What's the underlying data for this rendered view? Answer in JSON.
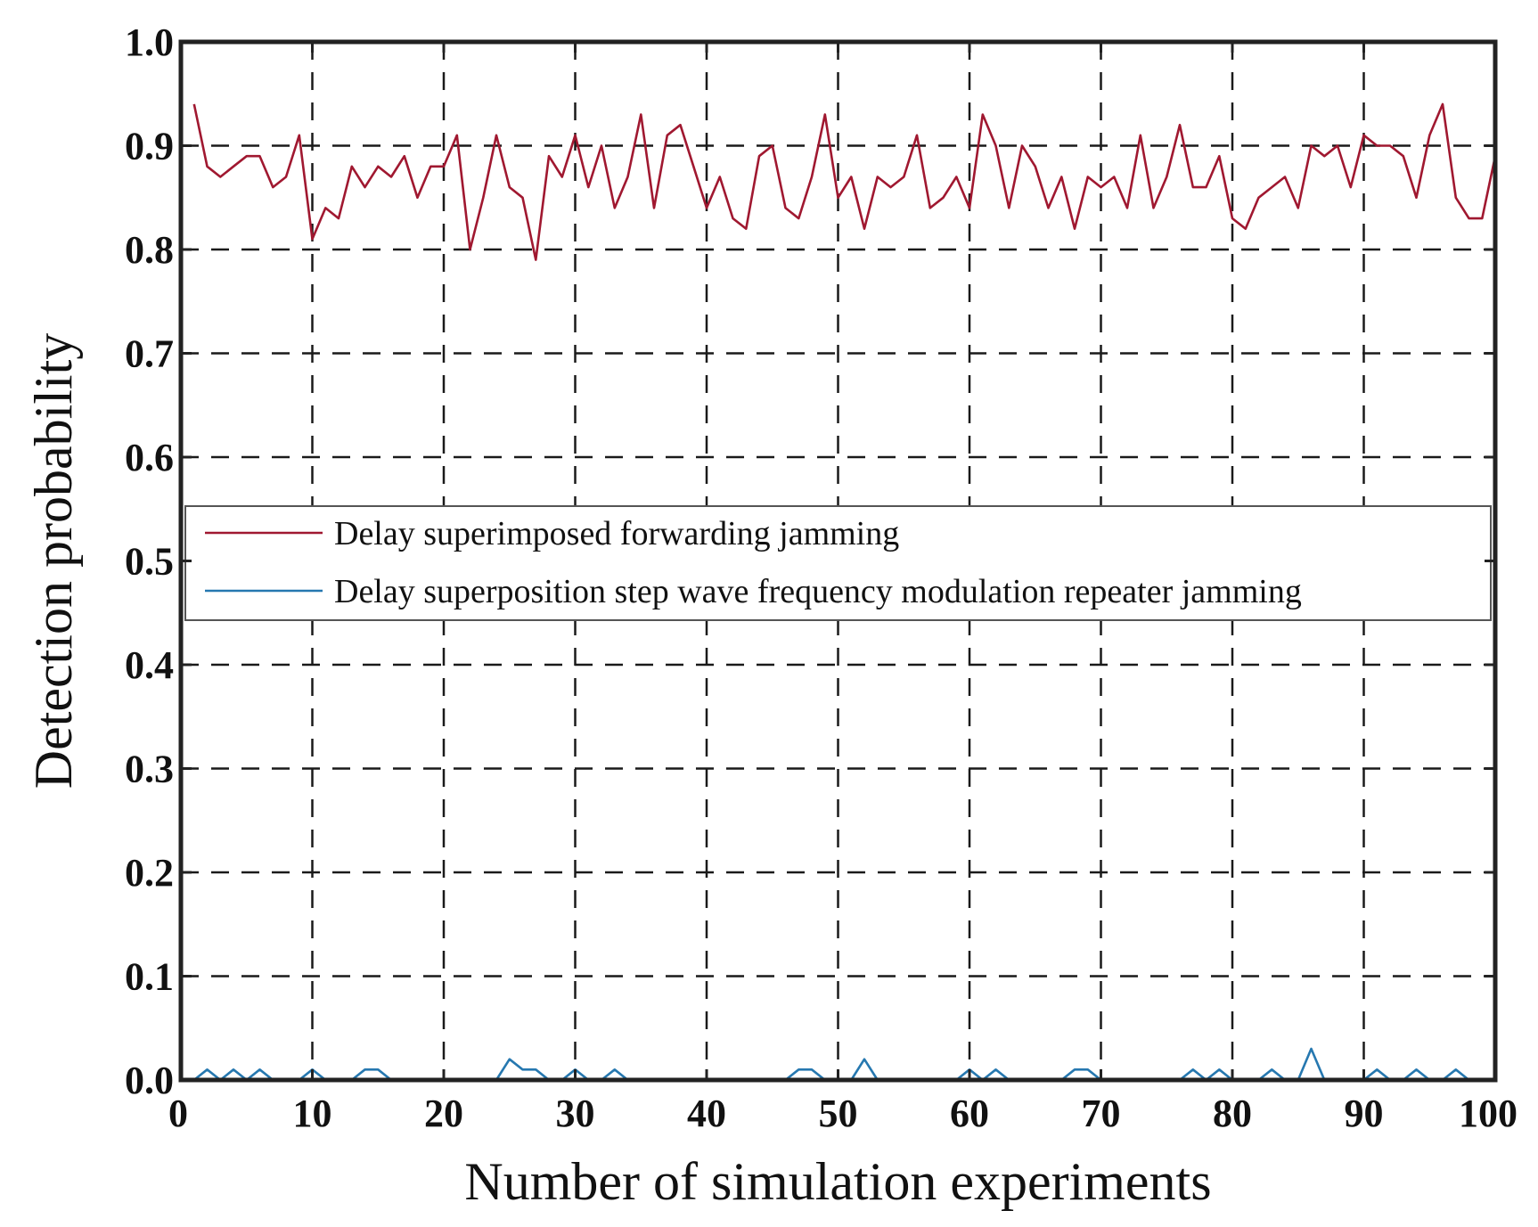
{
  "chart_data": {
    "type": "line",
    "title": "",
    "xlabel": "Number of simulation experiments",
    "ylabel": "Detection probability",
    "xlim": [
      0,
      100
    ],
    "ylim": [
      0.0,
      1.0
    ],
    "xticks": [
      0,
      10,
      20,
      30,
      40,
      50,
      60,
      70,
      80,
      90,
      100
    ],
    "yticks": [
      0.0,
      0.1,
      0.2,
      0.3,
      0.4,
      0.5,
      0.6,
      0.7,
      0.8,
      0.9,
      1.0
    ],
    "xtick_labels": [
      "0",
      "10",
      "20",
      "30",
      "40",
      "50",
      "60",
      "70",
      "80",
      "90",
      "100"
    ],
    "ytick_labels": [
      "0.0",
      "0.1",
      "0.2",
      "0.3",
      "0.4",
      "0.5",
      "0.6",
      "0.7",
      "0.8",
      "0.9",
      "1.0"
    ],
    "grid": true,
    "grid_style": "dashed",
    "legend_position": "center",
    "series": [
      {
        "name": "Delay superimposed forwarding jamming",
        "color": "#a01830",
        "x": [
          1,
          2,
          3,
          4,
          5,
          6,
          7,
          8,
          9,
          10,
          11,
          12,
          13,
          14,
          15,
          16,
          17,
          18,
          19,
          20,
          21,
          22,
          23,
          24,
          25,
          26,
          27,
          28,
          29,
          30,
          31,
          32,
          33,
          34,
          35,
          36,
          37,
          38,
          39,
          40,
          41,
          42,
          43,
          44,
          45,
          46,
          47,
          48,
          49,
          50,
          51,
          52,
          53,
          54,
          55,
          56,
          57,
          58,
          59,
          60,
          61,
          62,
          63,
          64,
          65,
          66,
          67,
          68,
          69,
          70,
          71,
          72,
          73,
          74,
          75,
          76,
          77,
          78,
          79,
          80,
          81,
          82,
          83,
          84,
          85,
          86,
          87,
          88,
          89,
          90,
          91,
          92,
          93,
          94,
          95,
          96,
          97,
          98,
          99,
          100
        ],
        "values": [
          0.94,
          0.88,
          0.87,
          0.88,
          0.89,
          0.89,
          0.86,
          0.87,
          0.91,
          0.81,
          0.84,
          0.83,
          0.88,
          0.86,
          0.88,
          0.87,
          0.89,
          0.85,
          0.88,
          0.88,
          0.91,
          0.8,
          0.85,
          0.91,
          0.86,
          0.85,
          0.79,
          0.89,
          0.87,
          0.91,
          0.86,
          0.9,
          0.84,
          0.87,
          0.93,
          0.84,
          0.91,
          0.92,
          0.88,
          0.84,
          0.87,
          0.83,
          0.82,
          0.89,
          0.9,
          0.84,
          0.83,
          0.87,
          0.93,
          0.85,
          0.87,
          0.82,
          0.87,
          0.86,
          0.87,
          0.91,
          0.84,
          0.85,
          0.87,
          0.84,
          0.93,
          0.9,
          0.84,
          0.9,
          0.88,
          0.84,
          0.87,
          0.82,
          0.87,
          0.86,
          0.87,
          0.84,
          0.91,
          0.84,
          0.87,
          0.92,
          0.86,
          0.86,
          0.89,
          0.83,
          0.82,
          0.85,
          0.86,
          0.87,
          0.84,
          0.9,
          0.89,
          0.9,
          0.86,
          0.91,
          0.9,
          0.9,
          0.89,
          0.85,
          0.91,
          0.94,
          0.85,
          0.83,
          0.83,
          0.89
        ]
      },
      {
        "name": "Delay superposition step wave frequency modulation repeater jamming",
        "color": "#2678b0",
        "x": [
          1,
          2,
          3,
          4,
          5,
          6,
          7,
          8,
          9,
          10,
          11,
          12,
          13,
          14,
          15,
          16,
          17,
          18,
          19,
          20,
          21,
          22,
          23,
          24,
          25,
          26,
          27,
          28,
          29,
          30,
          31,
          32,
          33,
          34,
          35,
          36,
          37,
          38,
          39,
          40,
          41,
          42,
          43,
          44,
          45,
          46,
          47,
          48,
          49,
          50,
          51,
          52,
          53,
          54,
          55,
          56,
          57,
          58,
          59,
          60,
          61,
          62,
          63,
          64,
          65,
          66,
          67,
          68,
          69,
          70,
          71,
          72,
          73,
          74,
          75,
          76,
          77,
          78,
          79,
          80,
          81,
          82,
          83,
          84,
          85,
          86,
          87,
          88,
          89,
          90,
          91,
          92,
          93,
          94,
          95,
          96,
          97,
          98,
          99,
          100
        ],
        "values": [
          0.0,
          0.01,
          0.0,
          0.01,
          0.0,
          0.01,
          0.0,
          0.0,
          0.0,
          0.01,
          0.0,
          0.0,
          0.0,
          0.01,
          0.01,
          0.0,
          0.0,
          0.0,
          0.0,
          0.0,
          0.0,
          0.0,
          0.0,
          0.0,
          0.02,
          0.01,
          0.01,
          0.0,
          0.0,
          0.01,
          0.0,
          0.0,
          0.01,
          0.0,
          0.0,
          0.0,
          0.0,
          0.0,
          0.0,
          0.0,
          0.0,
          0.0,
          0.0,
          0.0,
          0.0,
          0.0,
          0.01,
          0.01,
          0.0,
          0.0,
          0.0,
          0.02,
          0.0,
          0.0,
          0.0,
          0.0,
          0.0,
          0.0,
          0.0,
          0.01,
          0.0,
          0.01,
          0.0,
          0.0,
          0.0,
          0.0,
          0.0,
          0.01,
          0.01,
          0.0,
          0.0,
          0.0,
          0.0,
          0.0,
          0.0,
          0.0,
          0.01,
          0.0,
          0.01,
          0.0,
          0.0,
          0.0,
          0.01,
          0.0,
          0.0,
          0.03,
          0.0,
          0.0,
          0.0,
          0.0,
          0.01,
          0.0,
          0.0,
          0.01,
          0.0,
          0.0,
          0.01,
          0.0,
          0.0,
          0.0
        ]
      }
    ]
  }
}
